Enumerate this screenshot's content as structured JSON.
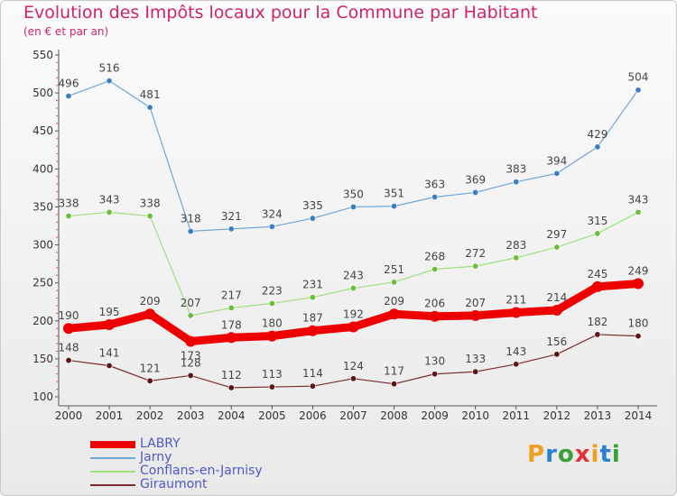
{
  "title": "Evolution des Impôts locaux pour la Commune par Habitant",
  "subtitle": "(en € et par an)",
  "logo_text": "Proxiti",
  "chart_data": {
    "type": "line",
    "title": "Evolution des Impôts locaux pour la Commune par Habitant",
    "subtitle": "(en € et par an)",
    "xlabel": "",
    "ylabel": "",
    "x": [
      "2000",
      "2001",
      "2002",
      "2003",
      "2004",
      "2005",
      "2006",
      "2007",
      "2008",
      "2009",
      "2010",
      "2011",
      "2012",
      "2013",
      "2014"
    ],
    "ylim": [
      100,
      550
    ],
    "yticks": [
      "100",
      "150",
      "200",
      "250",
      "300",
      "350",
      "400",
      "450",
      "500",
      "550"
    ],
    "grid": false,
    "legend_position": "bottom-left",
    "series": [
      {
        "name": "LABRY",
        "color": "#ee0000",
        "marker": "#ee0000",
        "values": [
          190,
          195,
          209,
          173,
          178,
          180,
          187,
          192,
          209,
          206,
          207,
          211,
          214,
          245,
          249
        ]
      },
      {
        "name": "Jarny",
        "color": "#6fa7d8",
        "marker": "#3a7fc0",
        "values": [
          496,
          516,
          481,
          318,
          321,
          324,
          335,
          350,
          351,
          363,
          369,
          383,
          394,
          429,
          504
        ]
      },
      {
        "name": "Conflans-en-Jarnisy",
        "color": "#9ee07a",
        "marker": "#6cbd3a",
        "values": [
          338,
          343,
          338,
          207,
          217,
          223,
          231,
          243,
          251,
          268,
          272,
          283,
          297,
          315,
          343
        ]
      },
      {
        "name": "Giraumont",
        "color": "#7a2a2a",
        "marker": "#5a1414",
        "values": [
          148,
          141,
          121,
          128,
          112,
          113,
          114,
          124,
          117,
          130,
          133,
          143,
          156,
          182,
          180
        ]
      }
    ]
  }
}
